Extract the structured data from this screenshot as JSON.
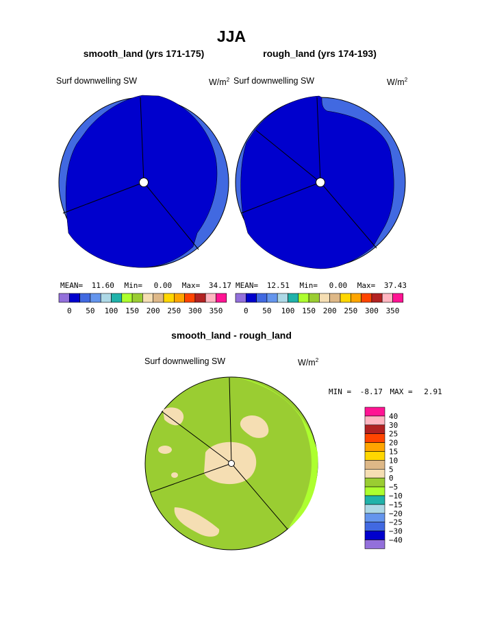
{
  "page": {
    "title": "JJA",
    "diff_title": "smooth_land - rough_land"
  },
  "panels": [
    {
      "subtitle": "smooth_land (yrs 171-175)",
      "field_label": "Surf downwelling SW",
      "units_main": "W/m",
      "units_sup": "2",
      "stats": {
        "mean_label": "MEAN=",
        "mean": "11.60",
        "min_label": "Min=",
        "min": "0.00",
        "max_label": "Max=",
        "max": "34.17"
      }
    },
    {
      "subtitle": "rough_land (yrs 174-193)",
      "field_label": "Surf downwelling SW",
      "units_main": "W/m",
      "units_sup": "2",
      "stats": {
        "mean_label": "MEAN=",
        "mean": "12.51",
        "min_label": "Min=",
        "min": "0.00",
        "max_label": "Max=",
        "max": "37.43"
      }
    }
  ],
  "diff_panel": {
    "field_label": "Surf downwelling SW",
    "units": "W/m",
    "units_sup": "2",
    "min_label": "MIN =",
    "min": "-8.17",
    "max_label": "MAX =",
    "max": "2.91"
  },
  "chart_data": [
    {
      "type": "heatmap",
      "title": "smooth_land (yrs 171-175)",
      "field": "Surf downwelling SW",
      "units": "W/m2",
      "projection": "polar",
      "mean": 11.6,
      "min": 0.0,
      "max": 34.17,
      "colorbar": {
        "colors": [
          "#9370db",
          "#0000cd",
          "#4169e1",
          "#6495ed",
          "#add8e6",
          "#20b2aa",
          "#adff2f",
          "#9acd32",
          "#f5deb3",
          "#deb887",
          "#ffd700",
          "#ffa500",
          "#ff4500",
          "#b22222",
          "#ffb6c1",
          "#ff1493"
        ],
        "tick_labels": [
          "0",
          "50",
          "100",
          "150",
          "200",
          "250",
          "300",
          "350"
        ]
      }
    },
    {
      "type": "heatmap",
      "title": "rough_land (yrs 174-193)",
      "field": "Surf downwelling SW",
      "units": "W/m2",
      "projection": "polar",
      "mean": 12.51,
      "min": 0.0,
      "max": 37.43,
      "colorbar": {
        "colors": [
          "#9370db",
          "#0000cd",
          "#4169e1",
          "#6495ed",
          "#add8e6",
          "#20b2aa",
          "#adff2f",
          "#9acd32",
          "#f5deb3",
          "#deb887",
          "#ffd700",
          "#ffa500",
          "#ff4500",
          "#b22222",
          "#ffb6c1",
          "#ff1493"
        ],
        "tick_labels": [
          "0",
          "50",
          "100",
          "150",
          "200",
          "250",
          "300",
          "350"
        ]
      }
    },
    {
      "type": "heatmap",
      "title": "smooth_land - rough_land",
      "field": "Surf downwelling SW",
      "units": "W/m2",
      "projection": "polar",
      "min": -8.17,
      "max": 2.91,
      "colorbar": {
        "orientation": "vertical",
        "colors_top_to_bottom": [
          "#ff1493",
          "#ffb6c1",
          "#b22222",
          "#ff4500",
          "#ffa500",
          "#ffd700",
          "#deb887",
          "#f5deb3",
          "#9acd32",
          "#adff2f",
          "#20b2aa",
          "#add8e6",
          "#6495ed",
          "#4169e1",
          "#0000cd",
          "#9370db"
        ],
        "tick_labels": [
          "40",
          "30",
          "25",
          "20",
          "15",
          "10",
          "5",
          "0",
          "−5",
          "−10",
          "−15",
          "−20",
          "−25",
          "−30",
          "−40"
        ]
      }
    }
  ]
}
